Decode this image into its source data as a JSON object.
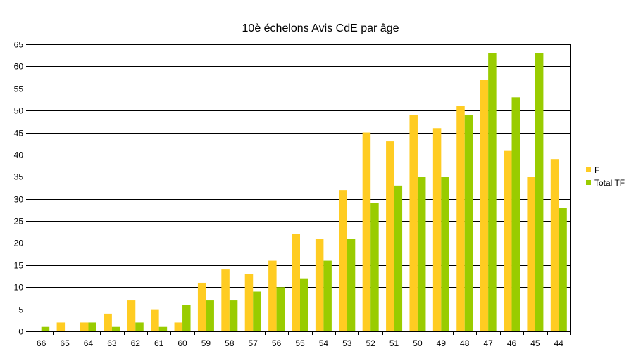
{
  "chart_data": {
    "type": "bar",
    "title": "10è échelons Avis CdE par âge",
    "xlabel": "",
    "ylabel": "",
    "ylim": [
      0,
      65
    ],
    "y_ticks": [
      0,
      5,
      10,
      15,
      20,
      25,
      30,
      35,
      40,
      45,
      50,
      55,
      60,
      65
    ],
    "grid": true,
    "legend_position": "right",
    "categories": [
      "66",
      "65",
      "64",
      "63",
      "62",
      "61",
      "60",
      "59",
      "58",
      "57",
      "56",
      "55",
      "54",
      "53",
      "52",
      "51",
      "50",
      "49",
      "48",
      "47",
      "46",
      "45",
      "44"
    ],
    "series": [
      {
        "name": "F",
        "color": "#FFCC22",
        "values": [
          0,
          2,
          2,
          4,
          7,
          5,
          2,
          11,
          14,
          13,
          16,
          22,
          21,
          32,
          45,
          43,
          49,
          46,
          51,
          57,
          41,
          35,
          39
        ]
      },
      {
        "name": "Total TF",
        "color": "#99CC00",
        "values": [
          1,
          0,
          2,
          1,
          2,
          1,
          6,
          7,
          7,
          9,
          10,
          12,
          16,
          21,
          29,
          33,
          35,
          35,
          49,
          63,
          53,
          63,
          28
        ]
      }
    ]
  }
}
